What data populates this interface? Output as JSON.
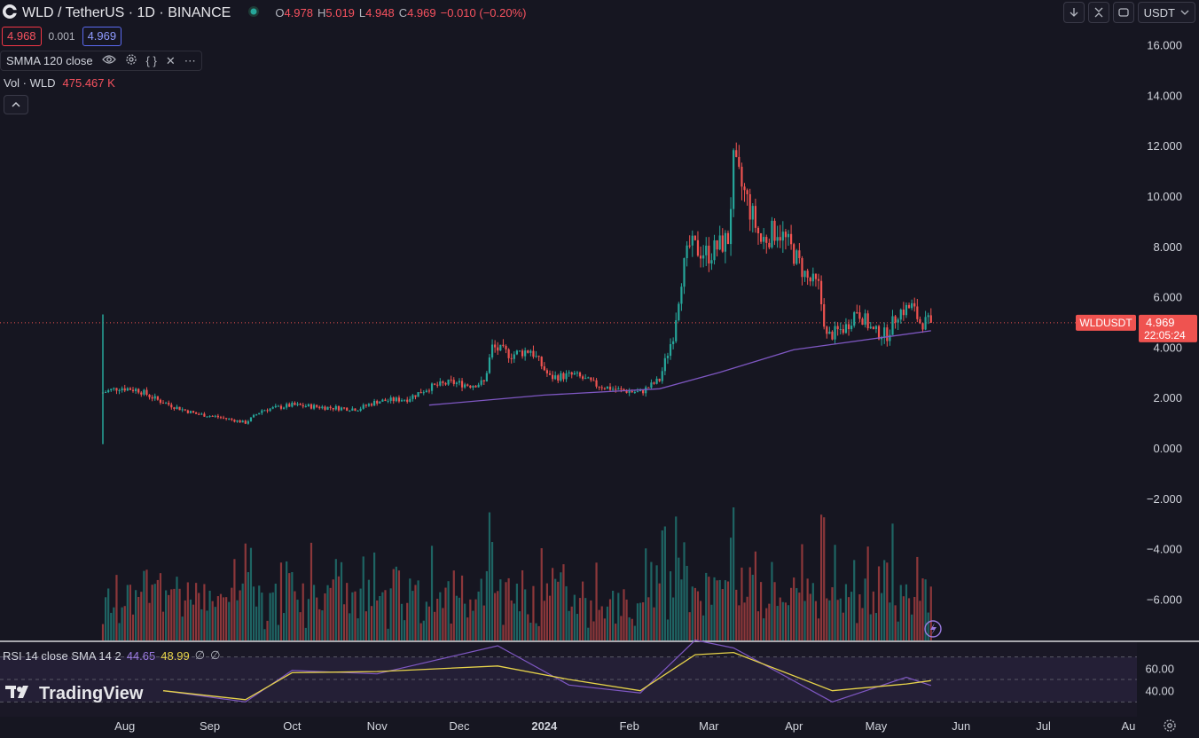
{
  "header": {
    "symbol_title": "WLD / TetherUS · 1D · BINANCE",
    "o_label": "O",
    "o_value": "4.978",
    "h_label": "H",
    "h_value": "5.019",
    "l_label": "L",
    "l_value": "4.948",
    "c_label": "C",
    "c_value": "4.969",
    "change": "−0.010 (−0.20%)",
    "bid": "4.968",
    "spread": "0.001",
    "ask": "4.969"
  },
  "toolbar": {
    "currency": "USDT"
  },
  "indicators": {
    "smma_label": "SMMA 120 close",
    "vol_label": "Vol · WLD",
    "vol_value": "475.467 K"
  },
  "rsi": {
    "label": "RSI 14 close SMA 14 2",
    "rsi_value": "44.65",
    "sma_value": "48.99",
    "na1": "∅",
    "na2": "∅",
    "ticks": [
      "60.00",
      "40.00"
    ]
  },
  "price_tag": {
    "symbol": "WLDUSDT",
    "price": "4.969",
    "countdown": "22:05:24"
  },
  "logo": {
    "text": "TradingView"
  },
  "colors": {
    "up": "#26a69a",
    "down": "#ef5350",
    "smma": "#7e57c2",
    "rsi_line": "#7e57c2",
    "rsi_sma": "#e7d34a",
    "background": "#161621"
  },
  "chart_data": {
    "type": "candlestick",
    "y_ticks": [
      "16.000",
      "14.000",
      "12.000",
      "10.000",
      "8.000",
      "6.000",
      "4.000",
      "2.000",
      "0.000",
      "−2.000",
      "−4.000",
      "−6.000"
    ],
    "y_range": [
      -7.6,
      17.0
    ],
    "x_ticks": [
      "Aug",
      "Sep",
      "Oct",
      "Nov",
      "Dec",
      "2024",
      "Feb",
      "Mar",
      "Apr",
      "May",
      "Jun",
      "Jul",
      "Au"
    ],
    "x_range": [
      "2023-07-24",
      "2024-08-04"
    ],
    "start_date": "2023-07-24",
    "close_series": [
      {
        "date": "2023-07-24",
        "close": 2.2
      },
      {
        "date": "2023-07-30",
        "close": 2.4
      },
      {
        "date": "2023-08-06",
        "close": 2.3
      },
      {
        "date": "2023-08-13",
        "close": 1.9
      },
      {
        "date": "2023-08-20",
        "close": 1.6
      },
      {
        "date": "2023-08-27",
        "close": 1.35
      },
      {
        "date": "2023-09-03",
        "close": 1.25
      },
      {
        "date": "2023-09-10",
        "close": 1.1
      },
      {
        "date": "2023-09-14",
        "close": 1.0
      },
      {
        "date": "2023-09-20",
        "close": 1.5
      },
      {
        "date": "2023-10-01",
        "close": 1.7
      },
      {
        "date": "2023-10-15",
        "close": 1.6
      },
      {
        "date": "2023-10-25",
        "close": 1.55
      },
      {
        "date": "2023-11-01",
        "close": 1.85
      },
      {
        "date": "2023-11-12",
        "close": 1.95
      },
      {
        "date": "2023-11-20",
        "close": 2.4
      },
      {
        "date": "2023-11-28",
        "close": 2.6
      },
      {
        "date": "2023-12-05",
        "close": 2.5
      },
      {
        "date": "2023-12-10",
        "close": 2.6
      },
      {
        "date": "2023-12-13",
        "close": 4.0
      },
      {
        "date": "2023-12-20",
        "close": 3.7
      },
      {
        "date": "2023-12-27",
        "close": 3.9
      },
      {
        "date": "2024-01-03",
        "close": 2.8
      },
      {
        "date": "2024-01-12",
        "close": 2.9
      },
      {
        "date": "2024-01-20",
        "close": 2.5
      },
      {
        "date": "2024-01-28",
        "close": 2.3
      },
      {
        "date": "2024-02-05",
        "close": 2.2
      },
      {
        "date": "2024-02-12",
        "close": 2.7
      },
      {
        "date": "2024-02-17",
        "close": 4.5
      },
      {
        "date": "2024-02-20",
        "close": 6.8
      },
      {
        "date": "2024-02-23",
        "close": 8.0
      },
      {
        "date": "2024-03-01",
        "close": 7.7
      },
      {
        "date": "2024-03-08",
        "close": 8.3
      },
      {
        "date": "2024-03-10",
        "close": 11.2
      },
      {
        "date": "2024-03-15",
        "close": 9.8
      },
      {
        "date": "2024-03-20",
        "close": 8.2
      },
      {
        "date": "2024-03-26",
        "close": 8.7
      },
      {
        "date": "2024-03-31",
        "close": 7.9
      },
      {
        "date": "2024-04-06",
        "close": 6.7
      },
      {
        "date": "2024-04-10",
        "close": 6.4
      },
      {
        "date": "2024-04-13",
        "close": 4.4
      },
      {
        "date": "2024-04-20",
        "close": 4.8
      },
      {
        "date": "2024-04-24",
        "close": 5.5
      },
      {
        "date": "2024-04-30",
        "close": 4.6
      },
      {
        "date": "2024-05-05",
        "close": 4.5
      },
      {
        "date": "2024-05-09",
        "close": 5.4
      },
      {
        "date": "2024-05-14",
        "close": 5.6
      },
      {
        "date": "2024-05-17",
        "close": 5.0
      },
      {
        "date": "2024-05-21",
        "close": 4.969
      }
    ],
    "smma_series": [
      {
        "date": "2023-11-20",
        "value": 1.7
      },
      {
        "date": "2024-01-01",
        "value": 2.1
      },
      {
        "date": "2024-02-12",
        "value": 2.35
      },
      {
        "date": "2024-03-05",
        "value": 3.0
      },
      {
        "date": "2024-04-01",
        "value": 3.9
      },
      {
        "date": "2024-05-21",
        "value": 4.65
      }
    ],
    "volume_note": "volume histogram in K WLD, unlabeled",
    "rsi_series": [
      {
        "date": "2023-08-15",
        "rsi": 40,
        "sma": 40
      },
      {
        "date": "2023-09-14",
        "rsi": 30,
        "sma": 32
      },
      {
        "date": "2023-10-01",
        "rsi": 58,
        "sma": 56
      },
      {
        "date": "2023-11-01",
        "rsi": 55,
        "sma": 57
      },
      {
        "date": "2023-12-15",
        "rsi": 80,
        "sma": 62
      },
      {
        "date": "2024-01-10",
        "rsi": 45,
        "sma": 50
      },
      {
        "date": "2024-02-05",
        "rsi": 38,
        "sma": 40
      },
      {
        "date": "2024-02-25",
        "rsi": 85,
        "sma": 72
      },
      {
        "date": "2024-03-10",
        "rsi": 78,
        "sma": 74
      },
      {
        "date": "2024-04-15",
        "rsi": 30,
        "sma": 40
      },
      {
        "date": "2024-05-12",
        "rsi": 52,
        "sma": 46
      },
      {
        "date": "2024-05-21",
        "rsi": 44.65,
        "sma": 48.99
      }
    ]
  }
}
